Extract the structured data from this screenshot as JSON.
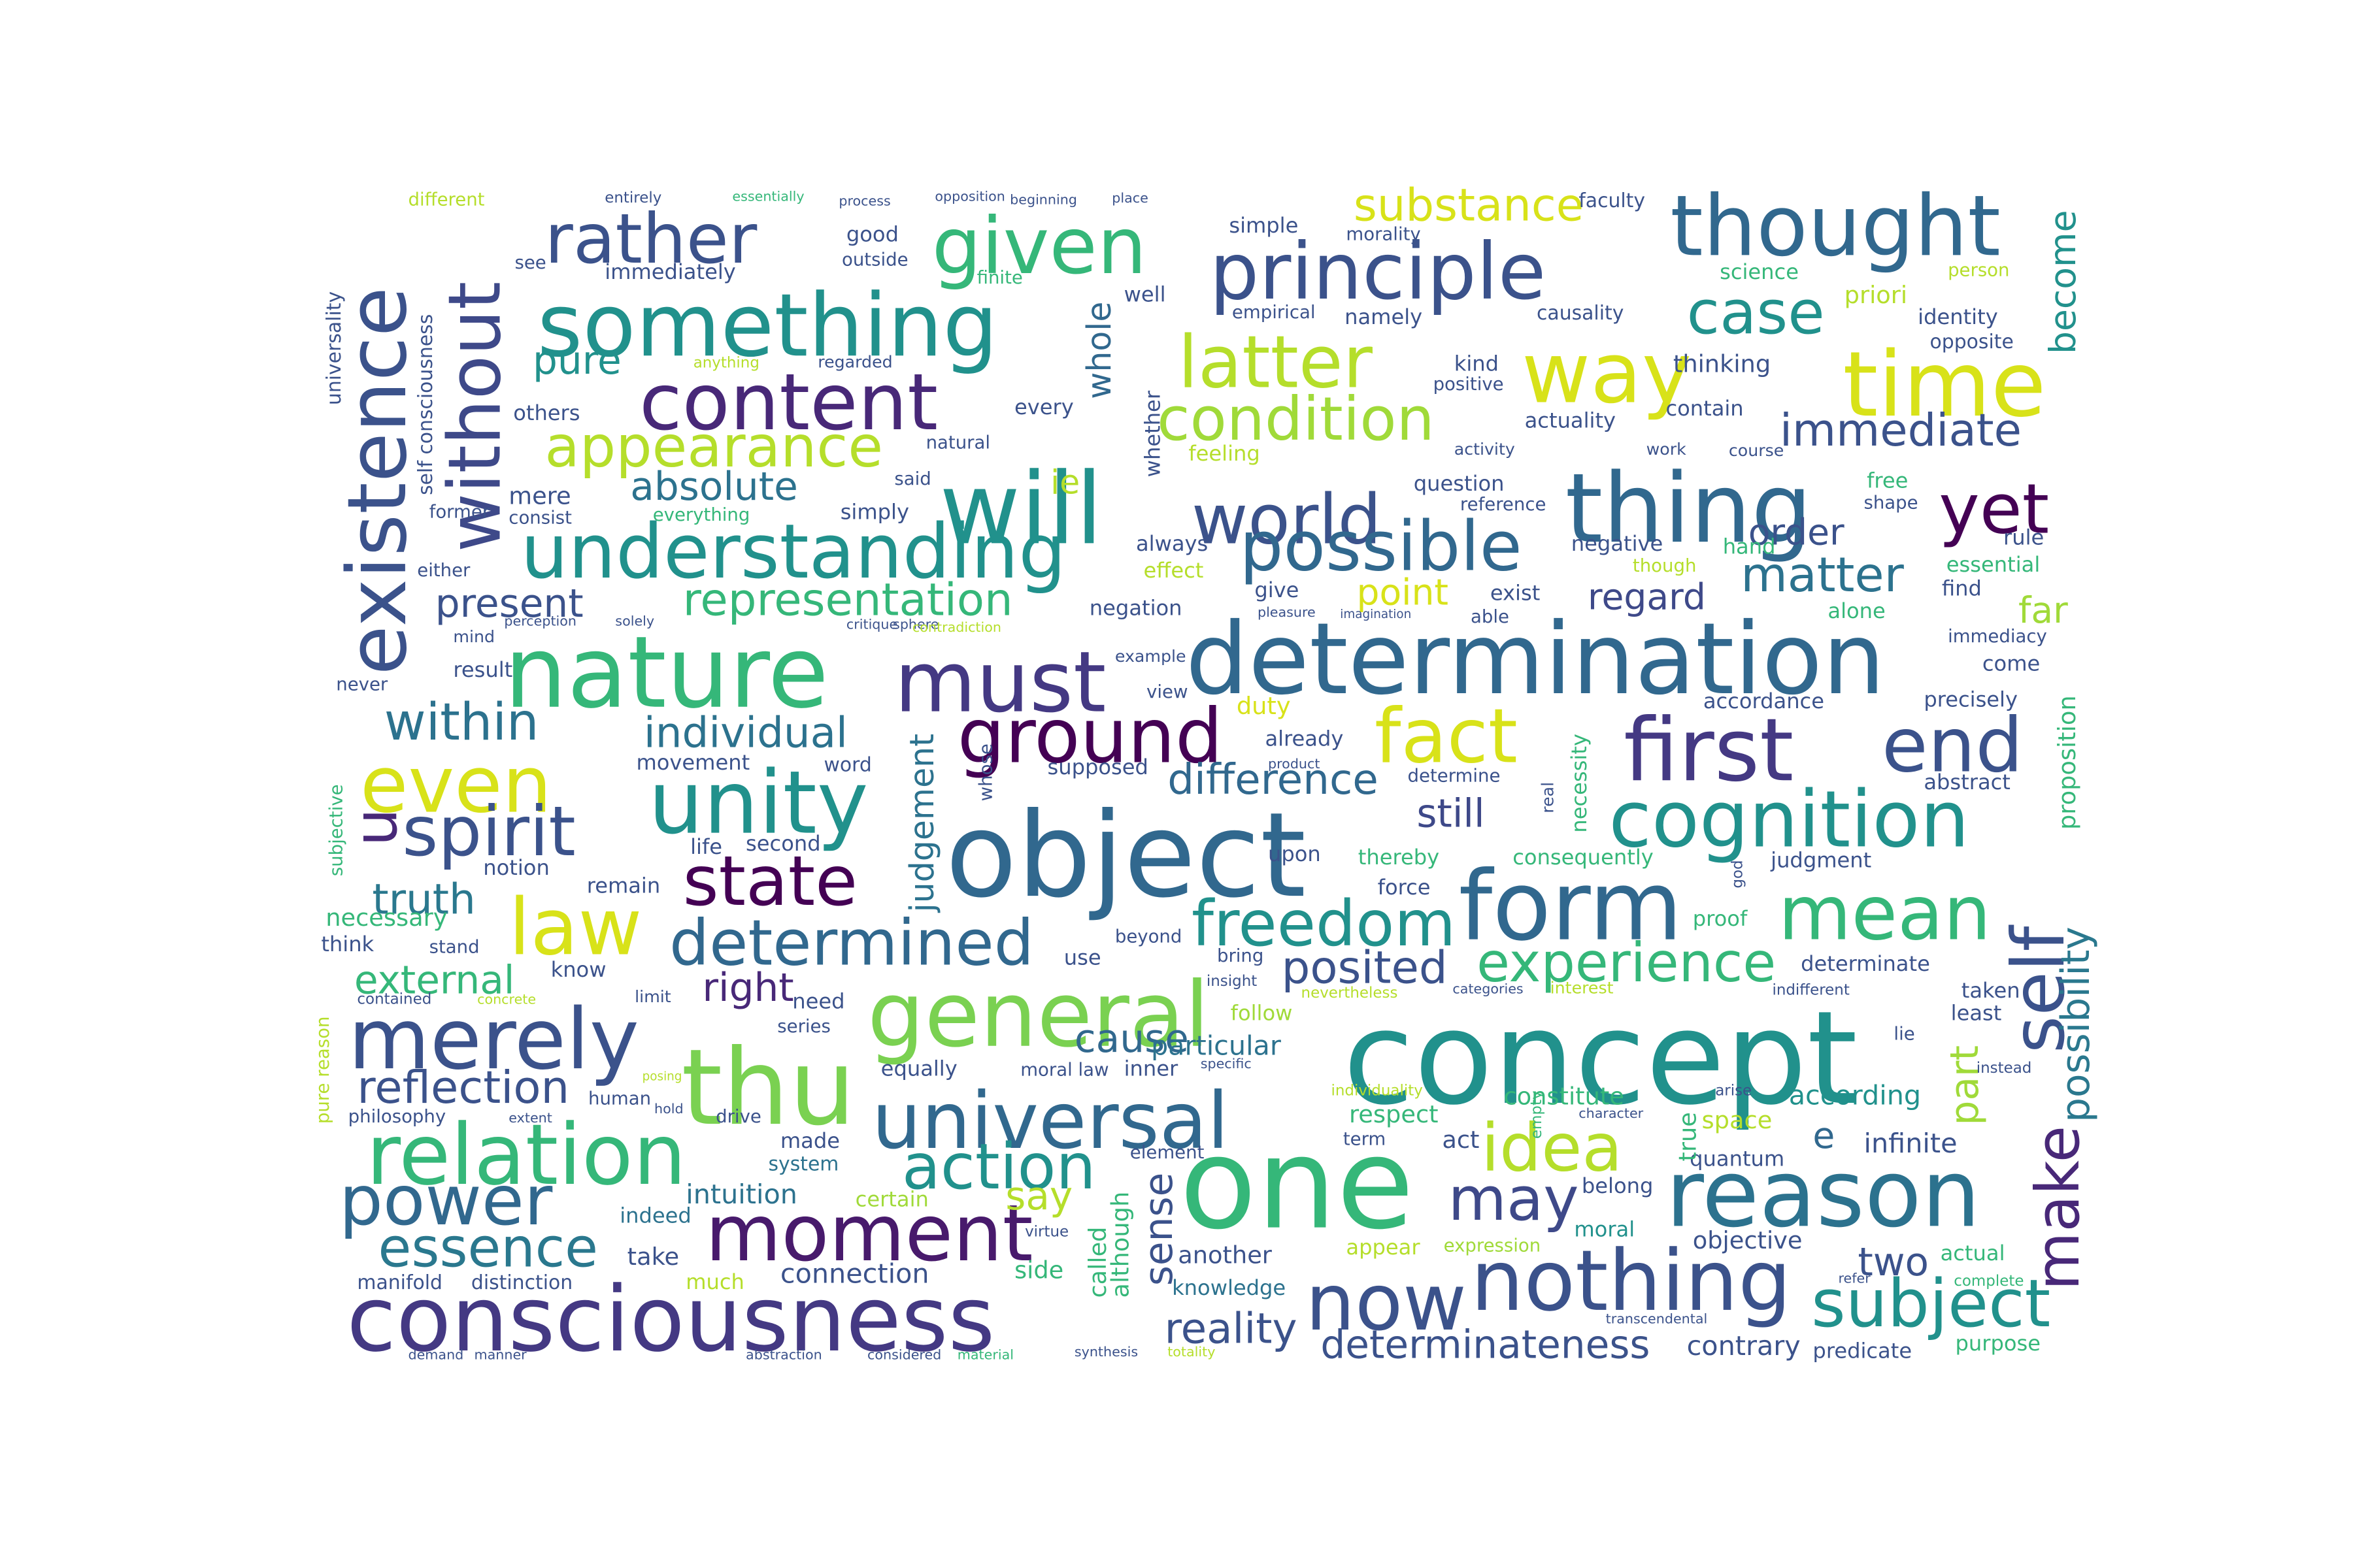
{
  "words": [
    {
      "text": "concept",
      "color": "#21918c"
    },
    {
      "text": "one",
      "color": "#35b779"
    },
    {
      "text": "object",
      "color": "#31688e"
    },
    {
      "text": "determination",
      "color": "#31688e"
    },
    {
      "text": "nature",
      "color": "#35b779"
    },
    {
      "text": "consciousness",
      "color": "#443983"
    },
    {
      "text": "something",
      "color": "#21918c"
    },
    {
      "text": "principle",
      "color": "#3b528b"
    },
    {
      "text": "thought",
      "color": "#31688e"
    },
    {
      "text": "thing",
      "color": "#31688e"
    },
    {
      "text": "must",
      "color": "#443983"
    },
    {
      "text": "understanding",
      "color": "#21918c"
    },
    {
      "text": "reason",
      "color": "#2c728e"
    },
    {
      "text": "nothing",
      "color": "#3b528b"
    },
    {
      "text": "form",
      "color": "#31688e"
    },
    {
      "text": "universal",
      "color": "#31688e"
    },
    {
      "text": "existence",
      "color": "#3b528b"
    },
    {
      "text": "will",
      "color": "#21918c"
    },
    {
      "text": "thu",
      "color": "#7ad151"
    },
    {
      "text": "now",
      "color": "#3b528b"
    },
    {
      "text": "time",
      "color": "#d8e219"
    },
    {
      "text": "first",
      "color": "#443983"
    },
    {
      "text": "content",
      "color": "#482878"
    },
    {
      "text": "world",
      "color": "#3b528b"
    },
    {
      "text": "merely",
      "color": "#3b528b"
    },
    {
      "text": "relation",
      "color": "#35b779"
    },
    {
      "text": "unity",
      "color": "#21918c"
    },
    {
      "text": "general",
      "color": "#7ad151"
    },
    {
      "text": "mean",
      "color": "#35b779"
    },
    {
      "text": "cognition",
      "color": "#21918c"
    },
    {
      "text": "latter",
      "color": "#b5de2b"
    },
    {
      "text": "given",
      "color": "#35b779"
    },
    {
      "text": "ground",
      "color": "#440154"
    },
    {
      "text": "end",
      "color": "#3b528b"
    },
    {
      "text": "possible",
      "color": "#31688e"
    },
    {
      "text": "way",
      "color": "#d8e219"
    },
    {
      "text": "rather",
      "color": "#3b528b"
    },
    {
      "text": "yet",
      "color": "#440154"
    },
    {
      "text": "without",
      "color": "#3e4989"
    },
    {
      "text": "self",
      "color": "#3b528b"
    },
    {
      "text": "make",
      "color": "#482878"
    },
    {
      "text": "moment",
      "color": "#481a6c"
    },
    {
      "text": "power",
      "color": "#31688e"
    },
    {
      "text": "fact",
      "color": "#d8e219"
    },
    {
      "text": "even",
      "color": "#d8e219"
    },
    {
      "text": "law",
      "color": "#d8e219"
    },
    {
      "text": "spirit",
      "color": "#3b528b"
    },
    {
      "text": "determined",
      "color": "#31688e"
    },
    {
      "text": "state",
      "color": "#440154"
    },
    {
      "text": "freedom",
      "color": "#21918c"
    },
    {
      "text": "action",
      "color": "#21918c"
    },
    {
      "text": "idea",
      "color": "#b5de2b"
    },
    {
      "text": "may",
      "color": "#3e4989"
    },
    {
      "text": "subject",
      "color": "#21918c"
    },
    {
      "text": "condition",
      "color": "#a0da39"
    },
    {
      "text": "appearance",
      "color": "#b5de2b"
    },
    {
      "text": "experience",
      "color": "#35b779"
    },
    {
      "text": "essence",
      "color": "#2a788e"
    },
    {
      "text": "case",
      "color": "#21918c"
    },
    {
      "text": "substance",
      "color": "#d8e219"
    },
    {
      "text": "representation",
      "color": "#35b779"
    },
    {
      "text": "immediate",
      "color": "#3b528b"
    },
    {
      "text": "matter",
      "color": "#2c728e"
    },
    {
      "text": "within",
      "color": "#2c728e"
    },
    {
      "text": "individual",
      "color": "#2c728e"
    },
    {
      "text": "difference",
      "color": "#31688e"
    },
    {
      "text": "reflection",
      "color": "#3b528b"
    },
    {
      "text": "absolute",
      "color": "#2c728e"
    },
    {
      "text": "posited",
      "color": "#3b528b"
    },
    {
      "text": "reality",
      "color": "#3b528b"
    },
    {
      "text": "determinateness",
      "color": "#3b528b"
    },
    {
      "text": "possibility",
      "color": "#2a788e"
    },
    {
      "text": "part",
      "color": "#a0da39"
    },
    {
      "text": "judgement",
      "color": "#2c728e"
    },
    {
      "text": "become",
      "color": "#21918c"
    },
    {
      "text": "truth",
      "color": "#2a788e"
    },
    {
      "text": "present",
      "color": "#3b528b"
    },
    {
      "text": "right",
      "color": "#482878"
    },
    {
      "text": "cause",
      "color": "#31688e"
    },
    {
      "text": "external",
      "color": "#35b779"
    },
    {
      "text": "sense",
      "color": "#3b528b"
    },
    {
      "text": "say",
      "color": "#b5de2b"
    },
    {
      "text": "pure",
      "color": "#21918c"
    },
    {
      "text": "u",
      "color": "#482878"
    },
    {
      "text": "e",
      "color": "#31688e"
    },
    {
      "text": "ie",
      "color": "#b5de2b"
    },
    {
      "text": "point",
      "color": "#d8e219"
    },
    {
      "text": "order",
      "color": "#3b528b"
    },
    {
      "text": "regard",
      "color": "#3e4989"
    },
    {
      "text": "still",
      "color": "#3e4989"
    },
    {
      "text": "far",
      "color": "#a0da39"
    },
    {
      "text": "whole",
      "color": "#31688e"
    },
    {
      "text": "two",
      "color": "#3b528b"
    },
    {
      "text": "connection",
      "color": "#3b528b"
    },
    {
      "text": "intuition",
      "color": "#2c728e"
    },
    {
      "text": "particular",
      "color": "#2c728e"
    },
    {
      "text": "according",
      "color": "#21918c"
    },
    {
      "text": "infinite",
      "color": "#3b528b"
    },
    {
      "text": "proposition",
      "color": "#35b779"
    },
    {
      "text": "contrary",
      "color": "#3b528b"
    },
    {
      "text": "predicate",
      "color": "#3b528b"
    },
    {
      "text": "purpose",
      "color": "#35b779"
    },
    {
      "text": "called",
      "color": "#35b779"
    },
    {
      "text": "although",
      "color": "#35b779"
    },
    {
      "text": "knowledge",
      "color": "#2c728e"
    },
    {
      "text": "another",
      "color": "#3b528b"
    },
    {
      "text": "take",
      "color": "#3b528b"
    },
    {
      "text": "much",
      "color": "#b5de2b"
    },
    {
      "text": "side",
      "color": "#35b779"
    },
    {
      "text": "manifold",
      "color": "#3b528b"
    },
    {
      "text": "distinction",
      "color": "#3b528b"
    },
    {
      "text": "indeed",
      "color": "#2c728e"
    },
    {
      "text": "certain",
      "color": "#a0da39"
    },
    {
      "text": "system",
      "color": "#2c728e"
    },
    {
      "text": "made",
      "color": "#3b528b"
    },
    {
      "text": "philosophy",
      "color": "#3b528b"
    },
    {
      "text": "equally",
      "color": "#3b528b"
    },
    {
      "text": "moral law",
      "color": "#3b528b"
    },
    {
      "text": "inner",
      "color": "#3b528b"
    },
    {
      "text": "respect",
      "color": "#35b779"
    },
    {
      "text": "constitute",
      "color": "#35b779"
    },
    {
      "text": "space",
      "color": "#b5de2b"
    },
    {
      "text": "quantum",
      "color": "#3b528b"
    },
    {
      "text": "true",
      "color": "#35b779"
    },
    {
      "text": "act",
      "color": "#3b528b"
    },
    {
      "text": "element",
      "color": "#3b528b"
    },
    {
      "text": "term",
      "color": "#3b528b"
    },
    {
      "text": "appear",
      "color": "#b5de2b"
    },
    {
      "text": "expression",
      "color": "#a0da39"
    },
    {
      "text": "moral",
      "color": "#21918c"
    },
    {
      "text": "belong",
      "color": "#3b528b"
    },
    {
      "text": "objective",
      "color": "#3b528b"
    },
    {
      "text": "actual",
      "color": "#35b779"
    },
    {
      "text": "follow",
      "color": "#a0da39"
    },
    {
      "text": "beyond",
      "color": "#3b528b"
    },
    {
      "text": "force",
      "color": "#3b528b"
    },
    {
      "text": "use",
      "color": "#3b528b"
    },
    {
      "text": "bring",
      "color": "#3b528b"
    },
    {
      "text": "need",
      "color": "#3b528b"
    },
    {
      "text": "series",
      "color": "#3b528b"
    },
    {
      "text": "limit",
      "color": "#3b528b"
    },
    {
      "text": "know",
      "color": "#3b528b"
    },
    {
      "text": "stand",
      "color": "#3b528b"
    },
    {
      "text": "think",
      "color": "#3b528b"
    },
    {
      "text": "necessary",
      "color": "#35b779"
    },
    {
      "text": "contained",
      "color": "#3b528b"
    },
    {
      "text": "concrete",
      "color": "#b5de2b"
    },
    {
      "text": "pure reason",
      "color": "#b5de2b"
    },
    {
      "text": "remain",
      "color": "#3b528b"
    },
    {
      "text": "life",
      "color": "#3b528b"
    },
    {
      "text": "second",
      "color": "#3b528b"
    },
    {
      "text": "notion",
      "color": "#3b528b"
    },
    {
      "text": "word",
      "color": "#3b528b"
    },
    {
      "text": "movement",
      "color": "#3b528b"
    },
    {
      "text": "supposed",
      "color": "#3b528b"
    },
    {
      "text": "whose",
      "color": "#3b528b"
    },
    {
      "text": "upon",
      "color": "#3b528b"
    },
    {
      "text": "thereby",
      "color": "#35b779"
    },
    {
      "text": "consequently",
      "color": "#35b779"
    },
    {
      "text": "judgment",
      "color": "#3b528b"
    },
    {
      "text": "precisely",
      "color": "#3b528b"
    },
    {
      "text": "abstract",
      "color": "#3b528b"
    },
    {
      "text": "determine",
      "color": "#3b528b"
    },
    {
      "text": "necessity",
      "color": "#35b779"
    },
    {
      "text": "accordance",
      "color": "#3b528b"
    },
    {
      "text": "already",
      "color": "#3b528b"
    },
    {
      "text": "duty",
      "color": "#d8e219"
    },
    {
      "text": "view",
      "color": "#3b528b"
    },
    {
      "text": "example",
      "color": "#3b528b"
    },
    {
      "text": "result",
      "color": "#3b528b"
    },
    {
      "text": "never",
      "color": "#3b528b"
    },
    {
      "text": "mind",
      "color": "#3b528b"
    },
    {
      "text": "either",
      "color": "#3b528b"
    },
    {
      "text": "mere",
      "color": "#3b528b"
    },
    {
      "text": "consist",
      "color": "#3b528b"
    },
    {
      "text": "everything",
      "color": "#35b779"
    },
    {
      "text": "simply",
      "color": "#3b528b"
    },
    {
      "text": "others",
      "color": "#3b528b"
    },
    {
      "text": "every",
      "color": "#3b528b"
    },
    {
      "text": "natural",
      "color": "#3b528b"
    },
    {
      "text": "said",
      "color": "#3b528b"
    },
    {
      "text": "feeling",
      "color": "#b5de2b"
    },
    {
      "text": "effect",
      "color": "#b5de2b"
    },
    {
      "text": "always",
      "color": "#3b528b"
    },
    {
      "text": "give",
      "color": "#3b528b"
    },
    {
      "text": "negation",
      "color": "#3b528b"
    },
    {
      "text": "able",
      "color": "#3b528b"
    },
    {
      "text": "exist",
      "color": "#3b528b"
    },
    {
      "text": "negative",
      "color": "#3b528b"
    },
    {
      "text": "though",
      "color": "#b5de2b"
    },
    {
      "text": "hand",
      "color": "#35b779"
    },
    {
      "text": "rule",
      "color": "#3b528b"
    },
    {
      "text": "essential",
      "color": "#35b779"
    },
    {
      "text": "find",
      "color": "#3b528b"
    },
    {
      "text": "alone",
      "color": "#35b779"
    },
    {
      "text": "immediacy",
      "color": "#3b528b"
    },
    {
      "text": "come",
      "color": "#3b528b"
    },
    {
      "text": "question",
      "color": "#3b528b"
    },
    {
      "text": "reference",
      "color": "#3b528b"
    },
    {
      "text": "activity",
      "color": "#3b528b"
    },
    {
      "text": "actuality",
      "color": "#3b528b"
    },
    {
      "text": "contain",
      "color": "#3b528b"
    },
    {
      "text": "work",
      "color": "#3b528b"
    },
    {
      "text": "course",
      "color": "#3b528b"
    },
    {
      "text": "free",
      "color": "#35b779"
    },
    {
      "text": "shape",
      "color": "#3b528b"
    },
    {
      "text": "positive",
      "color": "#3b528b"
    },
    {
      "text": "kind",
      "color": "#3b528b"
    },
    {
      "text": "thinking",
      "color": "#3b528b"
    },
    {
      "text": "namely",
      "color": "#3b528b"
    },
    {
      "text": "causality",
      "color": "#3b528b"
    },
    {
      "text": "identity",
      "color": "#3b528b"
    },
    {
      "text": "opposite",
      "color": "#3b528b"
    },
    {
      "text": "priori",
      "color": "#b5de2b"
    },
    {
      "text": "science",
      "color": "#35b779"
    },
    {
      "text": "person",
      "color": "#b5de2b"
    },
    {
      "text": "faculty",
      "color": "#3b528b"
    },
    {
      "text": "morality",
      "color": "#3b528b"
    },
    {
      "text": "simple",
      "color": "#3b528b"
    },
    {
      "text": "empirical",
      "color": "#3b528b"
    },
    {
      "text": "well",
      "color": "#3b528b"
    },
    {
      "text": "whether",
      "color": "#3b528b"
    },
    {
      "text": "good",
      "color": "#3b528b"
    },
    {
      "text": "outside",
      "color": "#3b528b"
    },
    {
      "text": "finite",
      "color": "#35b779"
    },
    {
      "text": "immediately",
      "color": "#3b528b"
    },
    {
      "text": "regarded",
      "color": "#3b528b"
    },
    {
      "text": "anything",
      "color": "#b5de2b"
    },
    {
      "text": "see",
      "color": "#3b528b"
    },
    {
      "text": "different",
      "color": "#b5de2b"
    },
    {
      "text": "entirely",
      "color": "#3b528b"
    },
    {
      "text": "essentially",
      "color": "#35b779"
    },
    {
      "text": "process",
      "color": "#3b528b"
    },
    {
      "text": "opposition",
      "color": "#3b528b"
    },
    {
      "text": "beginning",
      "color": "#3b528b"
    },
    {
      "text": "place",
      "color": "#3b528b"
    },
    {
      "text": "universality",
      "color": "#3b528b"
    },
    {
      "text": "self consciousness",
      "color": "#3b528b"
    },
    {
      "text": "former",
      "color": "#3b528b"
    },
    {
      "text": "subjective",
      "color": "#35b779"
    },
    {
      "text": "individuality",
      "color": "#b5de2b"
    },
    {
      "text": "empty",
      "color": "#35b779"
    },
    {
      "text": "drive",
      "color": "#3b528b"
    },
    {
      "text": "human",
      "color": "#3b528b"
    },
    {
      "text": "hold",
      "color": "#3b528b"
    },
    {
      "text": "extent",
      "color": "#3b528b"
    },
    {
      "text": "virtue",
      "color": "#3b528b"
    },
    {
      "text": "demand",
      "color": "#3b528b"
    },
    {
      "text": "manner",
      "color": "#3b528b"
    },
    {
      "text": "abstraction",
      "color": "#3b528b"
    },
    {
      "text": "considered",
      "color": "#3b528b"
    },
    {
      "text": "material",
      "color": "#35b779"
    },
    {
      "text": "synthesis",
      "color": "#3b528b"
    },
    {
      "text": "totality",
      "color": "#b5de2b"
    },
    {
      "text": "transcendental",
      "color": "#3b528b"
    },
    {
      "text": "indifferent",
      "color": "#3b528b"
    },
    {
      "text": "taken",
      "color": "#3b528b"
    },
    {
      "text": "least",
      "color": "#3b528b"
    },
    {
      "text": "determinate",
      "color": "#3b528b"
    },
    {
      "text": "interest",
      "color": "#b5de2b"
    },
    {
      "text": "categories",
      "color": "#3b528b"
    },
    {
      "text": "nevertheless",
      "color": "#b5de2b"
    },
    {
      "text": "insight",
      "color": "#3b528b"
    },
    {
      "text": "proof",
      "color": "#35b779"
    },
    {
      "text": "real",
      "color": "#3b528b"
    },
    {
      "text": "god",
      "color": "#3b528b"
    },
    {
      "text": "perception",
      "color": "#3b528b"
    },
    {
      "text": "solely",
      "color": "#3b528b"
    },
    {
      "text": "critique",
      "color": "#3b528b"
    },
    {
      "text": "sphere",
      "color": "#3b528b"
    },
    {
      "text": "contradiction",
      "color": "#b5de2b"
    },
    {
      "text": "imagination",
      "color": "#3b528b"
    },
    {
      "text": "pleasure",
      "color": "#3b528b"
    },
    {
      "text": "product",
      "color": "#3b528b"
    },
    {
      "text": "specific",
      "color": "#3b528b"
    },
    {
      "text": "character",
      "color": "#3b528b"
    },
    {
      "text": "instead",
      "color": "#3b528b"
    },
    {
      "text": "lie",
      "color": "#3b528b"
    },
    {
      "text": "complete",
      "color": "#35b779"
    },
    {
      "text": "refer",
      "color": "#3b528b"
    },
    {
      "text": "arise",
      "color": "#3b528b"
    },
    {
      "text": "posing",
      "color": "#b5de2b"
    }
  ]
}
